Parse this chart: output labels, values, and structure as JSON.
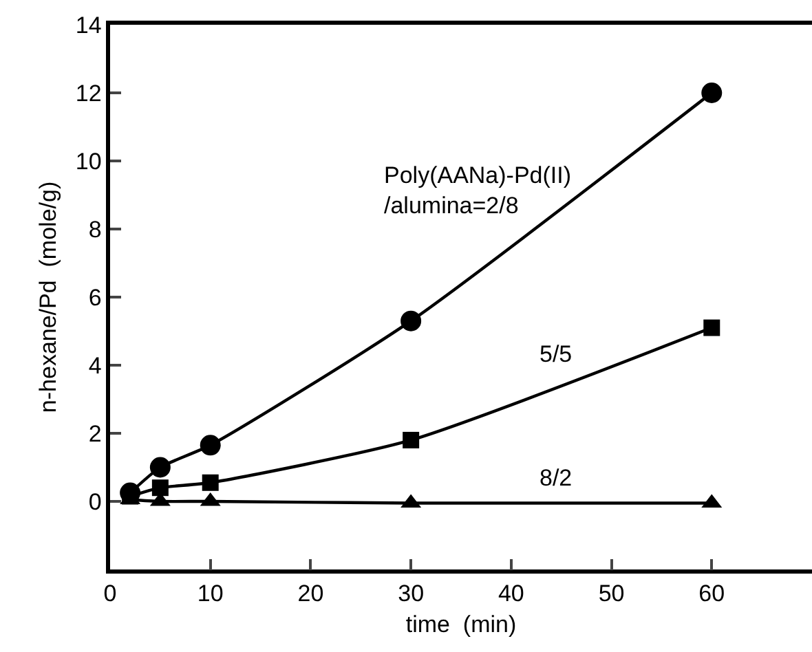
{
  "chart_data": {
    "type": "line",
    "xlabel": "time  (min)",
    "ylabel": "n-hexane/Pd  (mole/g)",
    "x": [
      2,
      5,
      10,
      30,
      60
    ],
    "series": [
      {
        "name": "Poly(AANa)-Pd(II)\n/alumina=2/8",
        "color": "#000000",
        "marker": "circle",
        "values": [
          0.25,
          1.0,
          1.65,
          5.3,
          12.0
        ]
      },
      {
        "name": "5/5",
        "color": "#000000",
        "marker": "square",
        "values": [
          0.15,
          0.4,
          0.55,
          1.8,
          5.1
        ]
      },
      {
        "name": "8/2",
        "color": "#000000",
        "marker": "triangle",
        "values": [
          0.05,
          0.0,
          0.0,
          -0.05,
          -0.05
        ]
      }
    ],
    "xlim": [
      0,
      70
    ],
    "xticks": [
      0,
      10,
      20,
      30,
      40,
      50,
      60
    ],
    "ylim": [
      -2,
      14
    ],
    "yticks": [
      0,
      2,
      4,
      6,
      8,
      10,
      12,
      14
    ],
    "grid": false,
    "legend": false
  }
}
